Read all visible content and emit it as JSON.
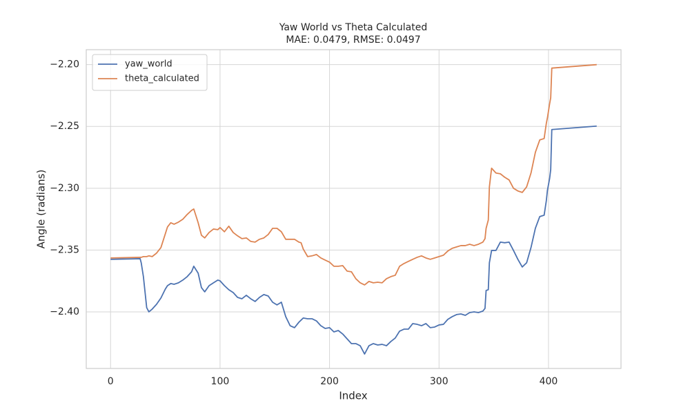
{
  "chart_data": {
    "type": "line",
    "title": "Yaw World vs Theta Calculated",
    "subtitle": "MAE: 0.0479, RMSE: 0.0497",
    "x_label": "Index",
    "y_label": "Angle (radians)",
    "xlim": [
      -22.2,
      466.2
    ],
    "xticks": [
      0,
      100,
      200,
      300,
      400
    ],
    "ylim": [
      -2.4458,
      -2.1879
    ],
    "yticks": [
      {
        "value": -2.4,
        "label": "−2.40"
      },
      {
        "value": -2.35,
        "label": "−2.35"
      },
      {
        "value": -2.3,
        "label": "−2.30"
      },
      {
        "value": -2.25,
        "label": "−2.25"
      },
      {
        "value": -2.2,
        "label": "−2.20"
      }
    ],
    "grid": true,
    "legend": "upper left",
    "x": [
      0,
      27,
      28,
      30,
      33,
      35,
      38,
      42,
      46,
      50,
      52,
      55,
      58,
      62,
      66,
      70,
      74,
      76,
      78,
      80,
      83,
      86,
      90,
      94,
      98,
      100,
      104,
      108,
      112,
      116,
      120,
      124,
      128,
      132,
      136,
      140,
      144,
      148,
      152,
      156,
      160,
      164,
      168,
      172,
      174,
      176,
      180,
      184,
      188,
      192,
      196,
      200,
      204,
      208,
      212,
      216,
      220,
      224,
      228,
      232,
      236,
      240,
      244,
      248,
      252,
      256,
      260,
      264,
      268,
      272,
      276,
      280,
      284,
      288,
      292,
      296,
      300,
      304,
      308,
      312,
      316,
      320,
      324,
      328,
      332,
      336,
      340,
      342,
      343,
      345,
      346,
      348,
      352,
      356,
      360,
      364,
      368,
      372,
      376,
      380,
      384,
      388,
      392,
      396,
      398,
      399,
      401,
      402,
      403,
      444
    ],
    "series": [
      {
        "name": "yaw_world",
        "color": "#4c72b0",
        "values": [
          -2.3575,
          -2.357,
          -2.3603,
          -2.3715,
          -2.3966,
          -2.4,
          -2.3978,
          -2.3939,
          -2.3888,
          -2.3816,
          -2.3788,
          -2.3771,
          -2.3777,
          -2.3765,
          -2.3743,
          -2.3715,
          -2.3676,
          -2.3631,
          -2.3659,
          -2.3687,
          -2.3804,
          -2.3838,
          -2.3788,
          -2.3765,
          -2.3743,
          -2.3749,
          -2.3788,
          -2.3821,
          -2.3844,
          -2.3883,
          -2.3894,
          -2.3866,
          -2.3894,
          -2.3916,
          -2.3883,
          -2.386,
          -2.3872,
          -2.3922,
          -2.3944,
          -2.3922,
          -2.4039,
          -2.4112,
          -2.4128,
          -2.4084,
          -2.4067,
          -2.405,
          -2.4056,
          -2.4056,
          -2.4073,
          -2.4112,
          -2.4134,
          -2.4128,
          -2.4162,
          -2.4151,
          -2.4179,
          -2.4218,
          -2.4257,
          -2.4257,
          -2.4274,
          -2.4341,
          -2.4274,
          -2.4257,
          -2.4268,
          -2.4263,
          -2.4274,
          -2.424,
          -2.4212,
          -2.4156,
          -2.414,
          -2.414,
          -2.4095,
          -2.4101,
          -2.4112,
          -2.4095,
          -2.4128,
          -2.4123,
          -2.4106,
          -2.4101,
          -2.4061,
          -2.4039,
          -2.4022,
          -2.4017,
          -2.4028,
          -2.4006,
          -2.4,
          -2.4006,
          -2.3994,
          -2.3972,
          -2.3827,
          -2.3821,
          -2.3603,
          -2.3503,
          -2.3503,
          -2.3436,
          -2.3441,
          -2.3436,
          -2.3503,
          -2.3575,
          -2.3637,
          -2.3603,
          -2.348,
          -2.3324,
          -2.3229,
          -2.3218,
          -2.3101,
          -2.3017,
          -2.2922,
          -2.2849,
          -2.2525,
          -2.2497
        ]
      },
      {
        "name": "theta_calculated",
        "color": "#dd8452",
        "values": [
          -2.3564,
          -2.3559,
          -2.3559,
          -2.3553,
          -2.3553,
          -2.3547,
          -2.3553,
          -2.3525,
          -2.348,
          -2.3369,
          -2.3313,
          -2.3279,
          -2.3291,
          -2.3274,
          -2.3251,
          -2.3212,
          -2.3179,
          -2.3168,
          -2.3223,
          -2.3279,
          -2.338,
          -2.3402,
          -2.3358,
          -2.333,
          -2.3335,
          -2.3318,
          -2.3352,
          -2.3307,
          -2.3358,
          -2.3385,
          -2.3408,
          -2.3402,
          -2.343,
          -2.3436,
          -2.3413,
          -2.3402,
          -2.3374,
          -2.3324,
          -2.3324,
          -2.3352,
          -2.3413,
          -2.3413,
          -2.3413,
          -2.3436,
          -2.3441,
          -2.3492,
          -2.3553,
          -2.3547,
          -2.3536,
          -2.3564,
          -2.3581,
          -2.3598,
          -2.3631,
          -2.3631,
          -2.3626,
          -2.367,
          -2.3676,
          -2.3732,
          -2.3765,
          -2.3782,
          -2.3754,
          -2.3765,
          -2.376,
          -2.3765,
          -2.3732,
          -2.3715,
          -2.3704,
          -2.3631,
          -2.3609,
          -2.3592,
          -2.3575,
          -2.3559,
          -2.3547,
          -2.3564,
          -2.3575,
          -2.3564,
          -2.3553,
          -2.3542,
          -2.3508,
          -2.3486,
          -2.3475,
          -2.3464,
          -2.3464,
          -2.3453,
          -2.3464,
          -2.3453,
          -2.3436,
          -2.3408,
          -2.3324,
          -2.3257,
          -2.2989,
          -2.2838,
          -2.2877,
          -2.2883,
          -2.2911,
          -2.2933,
          -2.3,
          -2.3022,
          -2.3034,
          -2.2989,
          -2.2877,
          -2.2709,
          -2.2609,
          -2.2598,
          -2.2475,
          -2.243,
          -2.2318,
          -2.2268,
          -2.2028,
          -2.2
        ]
      }
    ]
  }
}
